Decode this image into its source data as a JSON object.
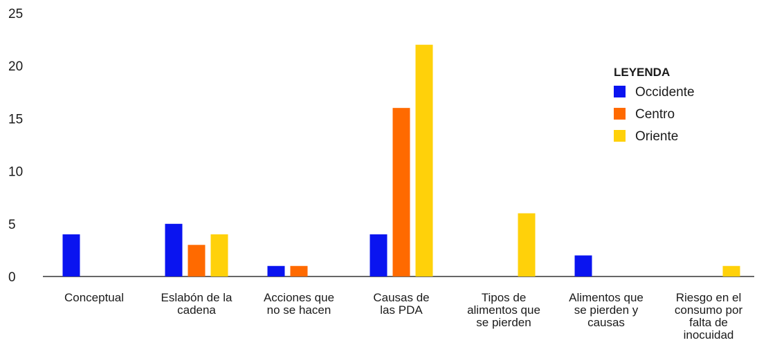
{
  "chart_data": {
    "type": "bar",
    "title": "",
    "xlabel": "",
    "ylabel": "",
    "ylim": [
      0,
      25
    ],
    "yticks": [
      0,
      5,
      10,
      15,
      20,
      25
    ],
    "grid": false,
    "categories": [
      "Conceptual",
      "Eslabón de la cadena",
      "Acciones que no se hacen",
      "Causas de las PDA",
      "Tipos de alimentos que se pierden",
      "Alimentos que se pierden y causas",
      "Riesgo en el consumo por falta de inocuidad"
    ],
    "category_label_lines": [
      [
        "Conceptual"
      ],
      [
        "Eslabón de la",
        "cadena"
      ],
      [
        "Acciones que",
        "no se hacen"
      ],
      [
        "Causas de",
        "las PDA"
      ],
      [
        "Tipos de",
        "alimentos que",
        "se pierden"
      ],
      [
        "Alimentos que",
        "se pierden y",
        "causas"
      ],
      [
        "Riesgo en el",
        "consumo por",
        "falta de",
        "inocuidad"
      ]
    ],
    "series": [
      {
        "name": "Occidente",
        "color": "#0a14f0",
        "values": [
          4,
          5,
          1,
          4,
          0,
          2,
          0
        ]
      },
      {
        "name": "Centro",
        "color": "#ff6a00",
        "values": [
          0,
          3,
          1,
          16,
          0,
          0,
          0
        ]
      },
      {
        "name": "Oriente",
        "color": "#ffd10a",
        "values": [
          0,
          4,
          0,
          22,
          6,
          0,
          1
        ]
      }
    ],
    "legend": {
      "title": "LEYENDA",
      "position": "right"
    }
  }
}
